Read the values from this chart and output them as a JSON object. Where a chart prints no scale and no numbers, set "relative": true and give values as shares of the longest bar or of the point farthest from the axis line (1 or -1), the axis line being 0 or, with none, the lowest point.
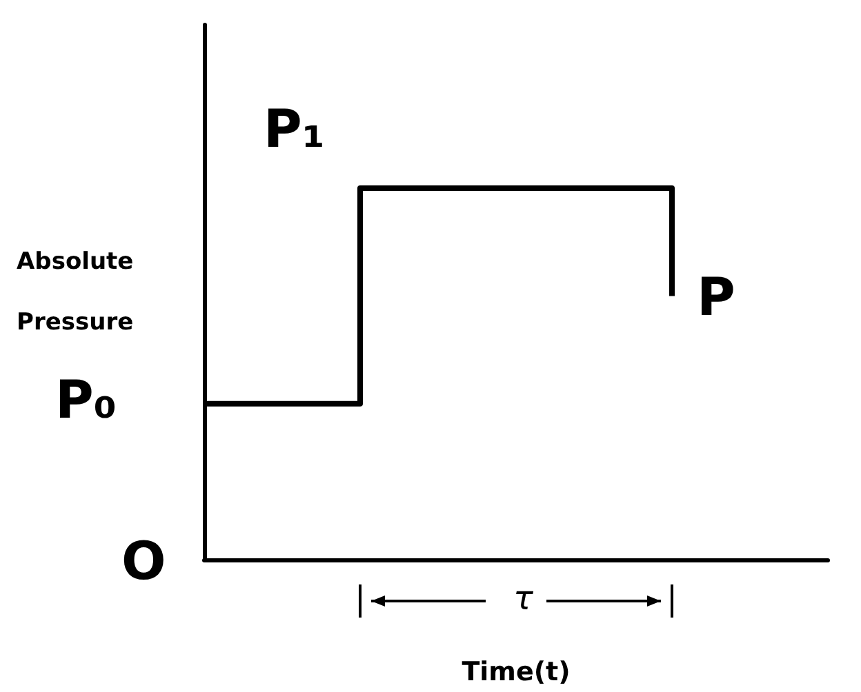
{
  "chart_data": {
    "type": "step",
    "xlabel": "Time(t)",
    "ylabel": "Absolute Pressure",
    "relative": true,
    "marker": "none",
    "color": "#000000",
    "categories": [
      null,
      null,
      null,
      null
    ],
    "values": [
      0.42,
      1,
      1,
      0.71
    ],
    "annotations": [
      "P₀",
      "P₁",
      "P",
      "O",
      "τ"
    ]
  }
}
